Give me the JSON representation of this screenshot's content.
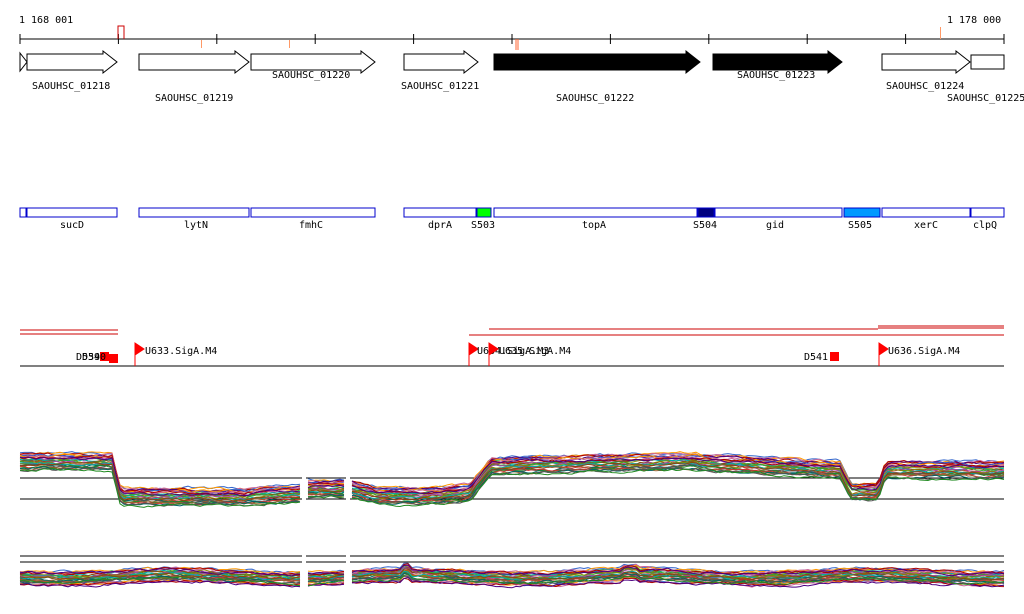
{
  "ruler": {
    "start": "1 168 001",
    "end": "1 178 000"
  },
  "genes": [
    {
      "id": "SAOUHSC_01218",
      "style": "outline"
    },
    {
      "id": "SAOUHSC_01219",
      "style": "outline"
    },
    {
      "id": "SAOUHSC_01220",
      "style": "outline"
    },
    {
      "id": "SAOUHSC_01221",
      "style": "outline"
    },
    {
      "id": "SAOUHSC_01222",
      "style": "filled"
    },
    {
      "id": "SAOUHSC_01223",
      "style": "filled"
    },
    {
      "id": "SAOUHSC_01224",
      "style": "outline"
    },
    {
      "id": "SAOUHSC_01225",
      "style": "outline"
    }
  ],
  "features": [
    {
      "name": "sucD",
      "color": "#ffffff"
    },
    {
      "name": "lytN",
      "color": "#ffffff"
    },
    {
      "name": "fmhC",
      "color": "#ffffff"
    },
    {
      "name": "dprA",
      "color": "#ffffff"
    },
    {
      "name": "S503",
      "color": "#00ff00"
    },
    {
      "name": "topA",
      "color": "#ffffff"
    },
    {
      "name": "S504",
      "color": "#000080"
    },
    {
      "name": "gid",
      "color": "#ffffff"
    },
    {
      "name": "S505",
      "color": "#0099ff"
    },
    {
      "name": "xerC",
      "color": "#ffffff"
    },
    {
      "name": "clpQ",
      "color": "#ffffff"
    }
  ],
  "promoters": [
    {
      "label": "U633.SigA.M4"
    },
    {
      "label": "U634.SigA.M3"
    },
    {
      "label": "D541"
    },
    {
      "label": "U636.SigA.M4"
    }
  ],
  "overlap_labels": [
    "D539",
    "D540",
    "U635.SigA.M4"
  ],
  "colors": {
    "feature_outline": "#0000cc",
    "promoter_flag": "#ff0000",
    "gene_fill": "#000000",
    "expression_palette": [
      "#cc3333",
      "#33aa33",
      "#3366cc",
      "#996633",
      "#aa44aa",
      "#ff9900",
      "#006666",
      "#888800",
      "#cc6699",
      "#555555",
      "#00aaaa",
      "#aa0000",
      "#228b22",
      "#8b4513",
      "#4b0082"
    ]
  }
}
